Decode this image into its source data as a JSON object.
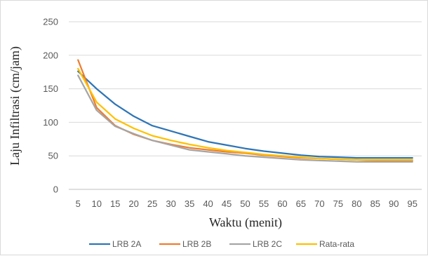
{
  "chart_data": {
    "type": "line",
    "title": "",
    "xlabel": "Waktu (menit)",
    "ylabel": "Laju Infiltrasi (cm/jam)",
    "x": [
      5,
      10,
      15,
      20,
      25,
      30,
      35,
      40,
      45,
      50,
      55,
      60,
      65,
      70,
      75,
      80,
      85,
      90,
      95
    ],
    "ylim": [
      0,
      250
    ],
    "yticks": [
      0,
      50,
      100,
      150,
      200,
      250
    ],
    "grid": true,
    "legend_position": "bottom",
    "series": [
      {
        "name": "LRB 2A",
        "color": "#2e75b6",
        "values": [
          176,
          150,
          127,
          109,
          95,
          87,
          79,
          71,
          66,
          61,
          57,
          54,
          51,
          49,
          48,
          47,
          47,
          47,
          47
        ]
      },
      {
        "name": "LRB 2B",
        "color": "#ed7d31",
        "values": [
          193,
          122,
          95,
          82,
          73,
          67,
          62,
          59,
          56,
          54,
          51,
          49,
          47,
          46,
          45,
          44,
          43,
          43,
          43
        ]
      },
      {
        "name": "LRB 2C",
        "color": "#a5a5a5",
        "values": [
          170,
          118,
          94,
          83,
          73,
          66,
          59,
          56,
          53,
          50,
          48,
          46,
          44,
          43,
          42,
          41,
          41,
          41,
          41
        ]
      },
      {
        "name": "Rata-rata",
        "color": "#ffc000",
        "values": [
          180,
          130,
          105,
          91,
          80,
          73,
          67,
          62,
          58,
          55,
          52,
          50,
          48,
          46,
          45,
          44,
          44,
          44,
          44
        ]
      }
    ]
  }
}
